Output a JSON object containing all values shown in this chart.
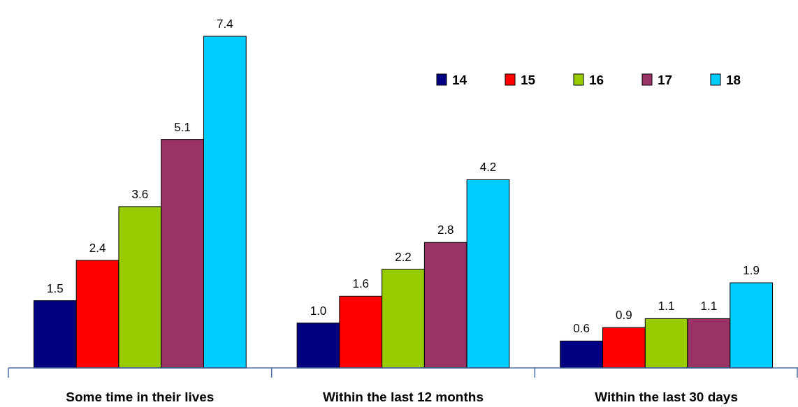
{
  "chart_data": {
    "type": "bar",
    "categories": [
      "Some time in their lives",
      "Within the last 12 months",
      "Within the last 30 days"
    ],
    "series": [
      {
        "name": "14",
        "color": "#000080",
        "values": [
          1.5,
          1.0,
          0.6
        ],
        "value_labels": [
          "1.5",
          "1.0",
          "0.6"
        ]
      },
      {
        "name": "15",
        "color": "#ff0000",
        "values": [
          2.4,
          1.6,
          0.9
        ],
        "value_labels": [
          "2.4",
          "1.6",
          "0.9"
        ]
      },
      {
        "name": "16",
        "color": "#99cc00",
        "values": [
          3.6,
          2.2,
          1.1
        ],
        "value_labels": [
          "3.6",
          "2.2",
          "1.1"
        ]
      },
      {
        "name": "17",
        "color": "#993366",
        "values": [
          5.1,
          2.8,
          1.1
        ],
        "value_labels": [
          "5.1",
          "2.8",
          "1.1"
        ]
      },
      {
        "name": "18",
        "color": "#00ccff",
        "values": [
          7.4,
          4.2,
          1.9
        ],
        "value_labels": [
          "7.4",
          "4.2",
          "1.9"
        ]
      }
    ],
    "legend": "top right"
  }
}
